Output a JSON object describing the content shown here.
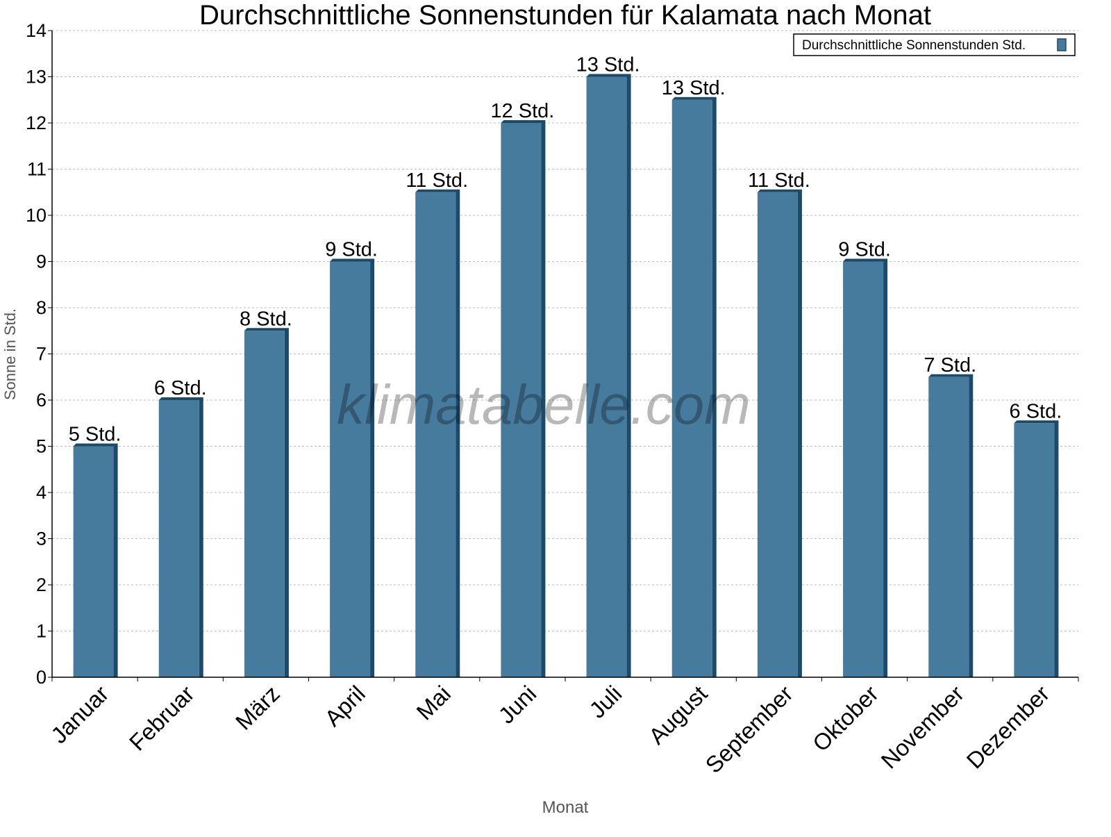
{
  "chart_data": {
    "type": "bar",
    "title": "Durchschnittliche Sonnenstunden für Kalamata nach Monat",
    "xlabel": "Monat",
    "ylabel": "Sonne in Std.",
    "ylim": [
      0,
      14
    ],
    "yticks": [
      "0",
      "1",
      "2",
      "3",
      "4",
      "5",
      "6",
      "7",
      "8",
      "9",
      "10",
      "11",
      "12",
      "13",
      "14"
    ],
    "grid": true,
    "legend_position": "top-right",
    "categories": [
      "Januar",
      "Februar",
      "März",
      "April",
      "Mai",
      "Juni",
      "Juli",
      "August",
      "September",
      "Oktober",
      "November",
      "Dezember"
    ],
    "series": [
      {
        "name": "Durchschnittliche Sonnenstunden Std.",
        "values": [
          5,
          6,
          7.5,
          9,
          10.5,
          12,
          13,
          12.5,
          10.5,
          9,
          6.5,
          5.5
        ],
        "data_labels": [
          "5 Std.",
          "6 Std.",
          "8 Std.",
          "9 Std.",
          "11 Std.",
          "12 Std.",
          "13 Std.",
          "13 Std.",
          "11 Std.",
          "9 Std.",
          "7 Std.",
          "6 Std."
        ],
        "color": "#467b9e",
        "shade_color": "#1b4a6b"
      }
    ],
    "watermark": "klimatabelle.com"
  }
}
